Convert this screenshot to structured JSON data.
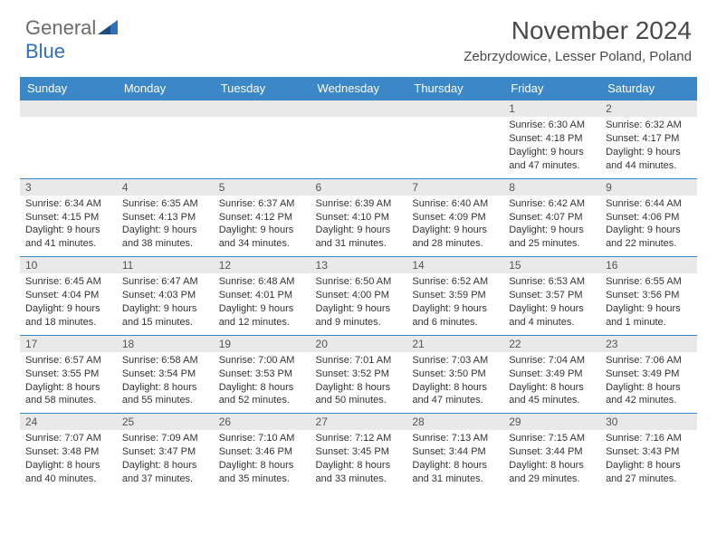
{
  "brand": {
    "part1": "General",
    "part2": "Blue"
  },
  "title": "November 2024",
  "location": "Zebrzydowice, Lesser Poland, Poland",
  "colors": {
    "header_bg": "#3c87c7",
    "header_text": "#ffffff",
    "daynum_bg": "#e9e9e9",
    "cell_border": "#3c87c7",
    "body_text": "#333333",
    "brand_gray": "#6b6b6b",
    "brand_blue": "#2f72b8"
  },
  "weekdays": [
    "Sunday",
    "Monday",
    "Tuesday",
    "Wednesday",
    "Thursday",
    "Friday",
    "Saturday"
  ],
  "weeks": [
    [
      null,
      null,
      null,
      null,
      null,
      {
        "d": "1",
        "sr": "Sunrise: 6:30 AM",
        "ss": "Sunset: 4:18 PM",
        "dl1": "Daylight: 9 hours",
        "dl2": "and 47 minutes."
      },
      {
        "d": "2",
        "sr": "Sunrise: 6:32 AM",
        "ss": "Sunset: 4:17 PM",
        "dl1": "Daylight: 9 hours",
        "dl2": "and 44 minutes."
      }
    ],
    [
      {
        "d": "3",
        "sr": "Sunrise: 6:34 AM",
        "ss": "Sunset: 4:15 PM",
        "dl1": "Daylight: 9 hours",
        "dl2": "and 41 minutes."
      },
      {
        "d": "4",
        "sr": "Sunrise: 6:35 AM",
        "ss": "Sunset: 4:13 PM",
        "dl1": "Daylight: 9 hours",
        "dl2": "and 38 minutes."
      },
      {
        "d": "5",
        "sr": "Sunrise: 6:37 AM",
        "ss": "Sunset: 4:12 PM",
        "dl1": "Daylight: 9 hours",
        "dl2": "and 34 minutes."
      },
      {
        "d": "6",
        "sr": "Sunrise: 6:39 AM",
        "ss": "Sunset: 4:10 PM",
        "dl1": "Daylight: 9 hours",
        "dl2": "and 31 minutes."
      },
      {
        "d": "7",
        "sr": "Sunrise: 6:40 AM",
        "ss": "Sunset: 4:09 PM",
        "dl1": "Daylight: 9 hours",
        "dl2": "and 28 minutes."
      },
      {
        "d": "8",
        "sr": "Sunrise: 6:42 AM",
        "ss": "Sunset: 4:07 PM",
        "dl1": "Daylight: 9 hours",
        "dl2": "and 25 minutes."
      },
      {
        "d": "9",
        "sr": "Sunrise: 6:44 AM",
        "ss": "Sunset: 4:06 PM",
        "dl1": "Daylight: 9 hours",
        "dl2": "and 22 minutes."
      }
    ],
    [
      {
        "d": "10",
        "sr": "Sunrise: 6:45 AM",
        "ss": "Sunset: 4:04 PM",
        "dl1": "Daylight: 9 hours",
        "dl2": "and 18 minutes."
      },
      {
        "d": "11",
        "sr": "Sunrise: 6:47 AM",
        "ss": "Sunset: 4:03 PM",
        "dl1": "Daylight: 9 hours",
        "dl2": "and 15 minutes."
      },
      {
        "d": "12",
        "sr": "Sunrise: 6:48 AM",
        "ss": "Sunset: 4:01 PM",
        "dl1": "Daylight: 9 hours",
        "dl2": "and 12 minutes."
      },
      {
        "d": "13",
        "sr": "Sunrise: 6:50 AM",
        "ss": "Sunset: 4:00 PM",
        "dl1": "Daylight: 9 hours",
        "dl2": "and 9 minutes."
      },
      {
        "d": "14",
        "sr": "Sunrise: 6:52 AM",
        "ss": "Sunset: 3:59 PM",
        "dl1": "Daylight: 9 hours",
        "dl2": "and 6 minutes."
      },
      {
        "d": "15",
        "sr": "Sunrise: 6:53 AM",
        "ss": "Sunset: 3:57 PM",
        "dl1": "Daylight: 9 hours",
        "dl2": "and 4 minutes."
      },
      {
        "d": "16",
        "sr": "Sunrise: 6:55 AM",
        "ss": "Sunset: 3:56 PM",
        "dl1": "Daylight: 9 hours",
        "dl2": "and 1 minute."
      }
    ],
    [
      {
        "d": "17",
        "sr": "Sunrise: 6:57 AM",
        "ss": "Sunset: 3:55 PM",
        "dl1": "Daylight: 8 hours",
        "dl2": "and 58 minutes."
      },
      {
        "d": "18",
        "sr": "Sunrise: 6:58 AM",
        "ss": "Sunset: 3:54 PM",
        "dl1": "Daylight: 8 hours",
        "dl2": "and 55 minutes."
      },
      {
        "d": "19",
        "sr": "Sunrise: 7:00 AM",
        "ss": "Sunset: 3:53 PM",
        "dl1": "Daylight: 8 hours",
        "dl2": "and 52 minutes."
      },
      {
        "d": "20",
        "sr": "Sunrise: 7:01 AM",
        "ss": "Sunset: 3:52 PM",
        "dl1": "Daylight: 8 hours",
        "dl2": "and 50 minutes."
      },
      {
        "d": "21",
        "sr": "Sunrise: 7:03 AM",
        "ss": "Sunset: 3:50 PM",
        "dl1": "Daylight: 8 hours",
        "dl2": "and 47 minutes."
      },
      {
        "d": "22",
        "sr": "Sunrise: 7:04 AM",
        "ss": "Sunset: 3:49 PM",
        "dl1": "Daylight: 8 hours",
        "dl2": "and 45 minutes."
      },
      {
        "d": "23",
        "sr": "Sunrise: 7:06 AM",
        "ss": "Sunset: 3:49 PM",
        "dl1": "Daylight: 8 hours",
        "dl2": "and 42 minutes."
      }
    ],
    [
      {
        "d": "24",
        "sr": "Sunrise: 7:07 AM",
        "ss": "Sunset: 3:48 PM",
        "dl1": "Daylight: 8 hours",
        "dl2": "and 40 minutes."
      },
      {
        "d": "25",
        "sr": "Sunrise: 7:09 AM",
        "ss": "Sunset: 3:47 PM",
        "dl1": "Daylight: 8 hours",
        "dl2": "and 37 minutes."
      },
      {
        "d": "26",
        "sr": "Sunrise: 7:10 AM",
        "ss": "Sunset: 3:46 PM",
        "dl1": "Daylight: 8 hours",
        "dl2": "and 35 minutes."
      },
      {
        "d": "27",
        "sr": "Sunrise: 7:12 AM",
        "ss": "Sunset: 3:45 PM",
        "dl1": "Daylight: 8 hours",
        "dl2": "and 33 minutes."
      },
      {
        "d": "28",
        "sr": "Sunrise: 7:13 AM",
        "ss": "Sunset: 3:44 PM",
        "dl1": "Daylight: 8 hours",
        "dl2": "and 31 minutes."
      },
      {
        "d": "29",
        "sr": "Sunrise: 7:15 AM",
        "ss": "Sunset: 3:44 PM",
        "dl1": "Daylight: 8 hours",
        "dl2": "and 29 minutes."
      },
      {
        "d": "30",
        "sr": "Sunrise: 7:16 AM",
        "ss": "Sunset: 3:43 PM",
        "dl1": "Daylight: 8 hours",
        "dl2": "and 27 minutes."
      }
    ]
  ]
}
